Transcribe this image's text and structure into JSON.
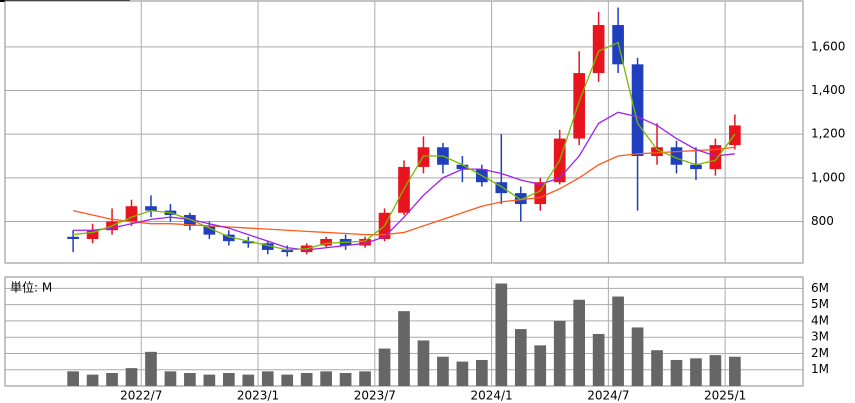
{
  "chart_data": [
    {
      "type": "candlestick",
      "x": [
        "2022/3",
        "2022/4",
        "2022/5",
        "2022/6",
        "2022/7",
        "2022/8",
        "2022/9",
        "2022/10",
        "2022/11",
        "2022/12",
        "2023/1",
        "2023/2",
        "2023/3",
        "2023/4",
        "2023/5",
        "2023/6",
        "2023/7",
        "2023/8",
        "2023/9",
        "2023/10",
        "2023/11",
        "2023/12",
        "2024/1",
        "2024/2",
        "2024/3",
        "2024/4",
        "2024/5",
        "2024/6",
        "2024/7",
        "2024/8",
        "2024/9",
        "2024/10",
        "2024/11",
        "2024/12",
        "2025/1"
      ],
      "open": [
        730,
        720,
        760,
        800,
        870,
        850,
        830,
        780,
        740,
        710,
        700,
        670,
        660,
        690,
        720,
        690,
        720,
        840,
        1050,
        1140,
        1060,
        1040,
        980,
        930,
        880,
        980,
        1180,
        1480,
        1700,
        1520,
        1100,
        1140,
        1060,
        1040,
        1150
      ],
      "high": [
        760,
        790,
        860,
        900,
        920,
        880,
        840,
        800,
        760,
        730,
        710,
        690,
        700,
        730,
        740,
        730,
        860,
        1080,
        1190,
        1160,
        1100,
        1060,
        1200,
        960,
        1000,
        1220,
        1580,
        1760,
        1780,
        1550,
        1250,
        1170,
        1140,
        1180,
        1290
      ],
      "low": [
        660,
        700,
        740,
        780,
        820,
        800,
        760,
        720,
        690,
        680,
        650,
        640,
        650,
        680,
        670,
        680,
        710,
        830,
        1020,
        1020,
        980,
        960,
        880,
        800,
        850,
        970,
        1150,
        1440,
        1480,
        850,
        1060,
        1020,
        990,
        1010,
        1130
      ],
      "close": [
        720,
        760,
        800,
        870,
        850,
        830,
        780,
        740,
        710,
        700,
        670,
        660,
        690,
        720,
        690,
        720,
        840,
        1050,
        1140,
        1060,
        1040,
        980,
        930,
        880,
        980,
        1180,
        1480,
        1700,
        1520,
        1100,
        1140,
        1060,
        1040,
        1150,
        1240
      ],
      "up_color": "#e8141e",
      "down_color": "#1f3fbf",
      "series": [
        {
          "color": "#ff5a1e",
          "values": [
            850,
            830,
            810,
            800,
            790,
            790,
            785,
            780,
            775,
            770,
            765,
            760,
            755,
            750,
            745,
            740,
            740,
            750,
            780,
            810,
            840,
            870,
            890,
            900,
            910,
            950,
            1000,
            1060,
            1100,
            1110,
            1115,
            1120,
            1125,
            1130,
            1140
          ]
        },
        {
          "color": "#a020f0",
          "values": [
            760,
            760,
            770,
            790,
            810,
            820,
            810,
            790,
            770,
            740,
            710,
            680,
            670,
            680,
            690,
            700,
            730,
            820,
            920,
            1000,
            1040,
            1040,
            1020,
            990,
            970,
            1000,
            1100,
            1250,
            1300,
            1280,
            1240,
            1180,
            1130,
            1100,
            1110
          ]
        },
        {
          "color": "#7cb800",
          "values": [
            740,
            750,
            780,
            820,
            850,
            840,
            810,
            770,
            730,
            710,
            690,
            670,
            675,
            700,
            705,
            710,
            780,
            950,
            1100,
            1100,
            1060,
            1010,
            960,
            900,
            940,
            1080,
            1350,
            1580,
            1620,
            1250,
            1130,
            1090,
            1060,
            1080,
            1200
          ]
        }
      ],
      "xlim": [
        "2021/12",
        "2025/5"
      ],
      "ylim": [
        610,
        1810
      ],
      "yticks": [
        800,
        {
          "value": 1000,
          "label": "1,000"
        },
        {
          "value": 1200,
          "label": "1,200"
        },
        {
          "value": 1400,
          "label": "1,400"
        },
        {
          "value": 1600,
          "label": "1,600"
        }
      ],
      "grid": true
    },
    {
      "type": "bar",
      "label": "単位: M",
      "x": [
        "2022/3",
        "2022/4",
        "2022/5",
        "2022/6",
        "2022/7",
        "2022/8",
        "2022/9",
        "2022/10",
        "2022/11",
        "2022/12",
        "2023/1",
        "2023/2",
        "2023/3",
        "2023/4",
        "2023/5",
        "2023/6",
        "2023/7",
        "2023/8",
        "2023/9",
        "2023/10",
        "2023/11",
        "2023/12",
        "2024/1",
        "2024/2",
        "2024/3",
        "2024/4",
        "2024/5",
        "2024/6",
        "2024/7",
        "2024/8",
        "2024/9",
        "2024/10",
        "2024/11",
        "2024/12",
        "2025/1"
      ],
      "values": [
        0.9,
        0.7,
        0.8,
        1.1,
        2.1,
        0.9,
        0.8,
        0.7,
        0.8,
        0.7,
        0.9,
        0.7,
        0.8,
        0.9,
        0.8,
        0.9,
        2.3,
        4.6,
        2.8,
        1.8,
        1.5,
        1.6,
        6.3,
        3.5,
        2.5,
        4.0,
        5.3,
        3.2,
        5.5,
        3.6,
        2.2,
        1.6,
        1.7,
        1.9,
        1.8
      ],
      "color": "#666666",
      "xlim": [
        "2021/12",
        "2025/5"
      ],
      "ylim": [
        0,
        6.7
      ],
      "yticks": [
        {
          "value": 1,
          "label": "1M"
        },
        {
          "value": 2,
          "label": "2M"
        },
        {
          "value": 3,
          "label": "3M"
        },
        {
          "value": 4,
          "label": "4M"
        },
        {
          "value": 5,
          "label": "5M"
        },
        {
          "value": 6,
          "label": "6M"
        }
      ],
      "xticks": [
        "2022/7",
        "2023/1",
        "2023/7",
        "2024/1",
        "2024/7",
        "2025/1"
      ],
      "grid": true
    }
  ]
}
